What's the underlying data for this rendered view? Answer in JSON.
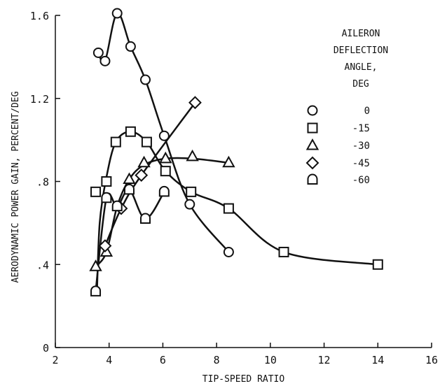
{
  "chart_data": {
    "type": "line",
    "xlabel": "TIP-SPEED RATIO",
    "ylabel": "AERODYNAMIC POWER GAIN, PERCENT/DEG",
    "xlim": [
      2,
      16
    ],
    "ylim": [
      0,
      1.6
    ],
    "x_ticks": [
      2,
      4,
      6,
      8,
      10,
      12,
      14,
      16
    ],
    "x_tick_labels": [
      "2",
      "4",
      "6",
      "8",
      "10",
      "12",
      "14",
      "16"
    ],
    "y_ticks": [
      0,
      0.4,
      0.8,
      1.2,
      1.6
    ],
    "y_tick_labels": [
      "0",
      ".4",
      ".8",
      "1.2",
      "1.6"
    ],
    "grid": false,
    "legend_position": "top-right",
    "legend_title_lines": [
      "AILERON",
      "DEFLECTION",
      "ANGLE,",
      "DEG"
    ],
    "series": [
      {
        "name": "0",
        "marker": "circle",
        "points": [
          [
            3.6,
            1.42
          ],
          [
            3.85,
            1.38
          ],
          [
            4.3,
            1.61
          ],
          [
            4.8,
            1.45
          ],
          [
            5.35,
            1.29
          ],
          [
            6.05,
            1.02
          ],
          [
            7.0,
            0.69
          ],
          [
            8.45,
            0.46
          ]
        ],
        "curve": [
          [
            3.6,
            1.42
          ],
          [
            3.85,
            1.38
          ],
          [
            4.3,
            1.61
          ],
          [
            4.8,
            1.45
          ],
          [
            5.35,
            1.29
          ],
          [
            6.05,
            1.02
          ],
          [
            7.0,
            0.69
          ],
          [
            8.45,
            0.46
          ]
        ]
      },
      {
        "name": "-15",
        "marker": "square",
        "points": [
          [
            3.5,
            0.75
          ],
          [
            3.9,
            0.8
          ],
          [
            4.25,
            0.99
          ],
          [
            4.8,
            1.04
          ],
          [
            5.4,
            0.99
          ],
          [
            6.1,
            0.85
          ],
          [
            7.05,
            0.75
          ],
          [
            8.45,
            0.67
          ],
          [
            10.5,
            0.46
          ],
          [
            14.0,
            0.4
          ]
        ],
        "curve": [
          [
            3.55,
            0.28
          ],
          [
            3.65,
            0.6
          ],
          [
            3.9,
            0.82
          ],
          [
            4.25,
            0.99
          ],
          [
            4.8,
            1.04
          ],
          [
            5.4,
            0.99
          ],
          [
            6.1,
            0.85
          ],
          [
            7.05,
            0.75
          ],
          [
            8.45,
            0.67
          ],
          [
            10.5,
            0.46
          ],
          [
            14.0,
            0.4
          ]
        ]
      },
      {
        "name": "-30",
        "marker": "triangle",
        "points": [
          [
            3.5,
            0.39
          ],
          [
            3.9,
            0.46
          ],
          [
            4.75,
            0.81
          ],
          [
            5.3,
            0.89
          ],
          [
            6.1,
            0.91
          ],
          [
            7.1,
            0.92
          ],
          [
            8.45,
            0.89
          ]
        ],
        "curve": [
          [
            3.5,
            0.39
          ],
          [
            3.9,
            0.46
          ],
          [
            4.3,
            0.68
          ],
          [
            4.75,
            0.81
          ],
          [
            5.3,
            0.88
          ],
          [
            6.1,
            0.91
          ],
          [
            7.1,
            0.91
          ],
          [
            8.45,
            0.89
          ]
        ]
      },
      {
        "name": "-45",
        "marker": "diamond",
        "points": [
          [
            3.85,
            0.49
          ],
          [
            4.45,
            0.67
          ],
          [
            5.2,
            0.83
          ],
          [
            7.2,
            1.18
          ]
        ],
        "curve": [
          [
            3.85,
            0.49
          ],
          [
            4.45,
            0.67
          ],
          [
            5.2,
            0.83
          ],
          [
            7.2,
            1.18
          ]
        ]
      },
      {
        "name": "-60",
        "marker": "dome",
        "points": [
          [
            3.5,
            0.27
          ],
          [
            3.9,
            0.72
          ],
          [
            4.3,
            0.68
          ],
          [
            4.75,
            0.76
          ],
          [
            5.35,
            0.62
          ],
          [
            6.05,
            0.75
          ]
        ],
        "curve": [
          [
            3.5,
            0.27
          ],
          [
            3.9,
            0.72
          ],
          [
            4.3,
            0.68
          ],
          [
            4.75,
            0.76
          ],
          [
            5.35,
            0.62
          ],
          [
            6.05,
            0.75
          ]
        ]
      }
    ]
  }
}
